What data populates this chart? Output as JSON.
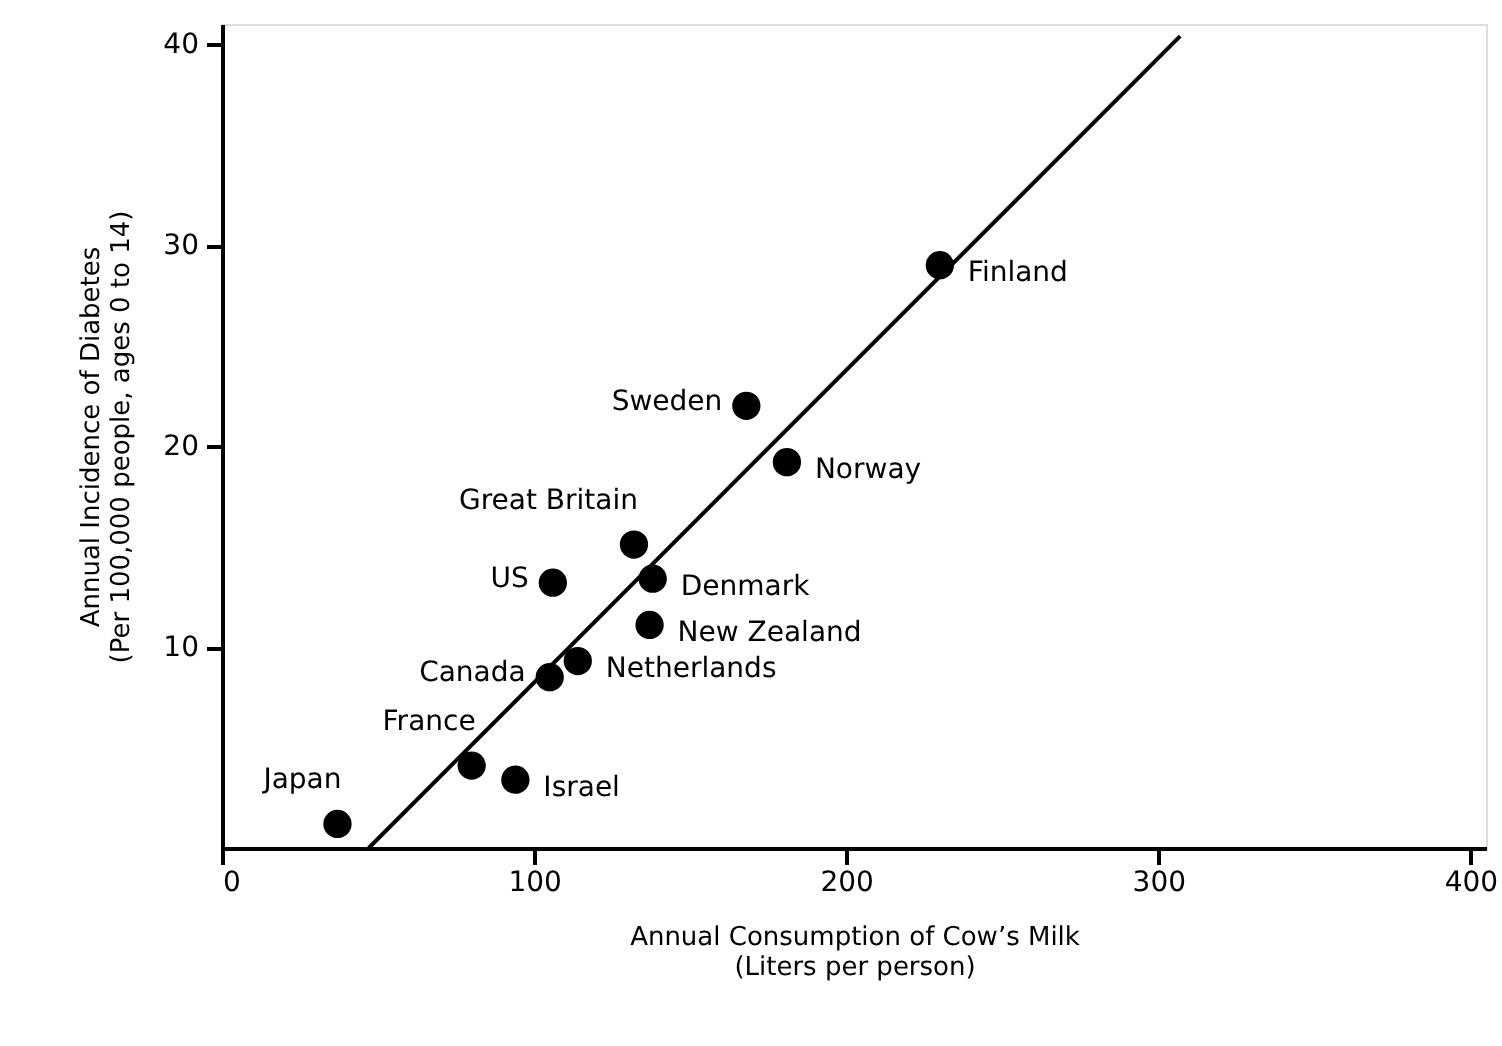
{
  "chart_data": {
    "type": "scatter",
    "xlabel": "Annual Consumption of Cow’s Milk\n(Liters per person)",
    "ylabel": "Annual Incidence of Diabetes\n(Per 100,000 people, ages 0 to 14)",
    "xlim": [
      0,
      405
    ],
    "xticks": [
      0,
      100,
      200,
      300,
      400
    ],
    "ylim": [
      0,
      41
    ],
    "yticks": [
      10,
      20,
      30,
      40
    ],
    "grid": false,
    "series": [
      {
        "marker": "circle",
        "color": "#000000",
        "x": [
          37,
          80,
          94,
          105,
          114,
          106,
          132,
          138,
          137,
          168,
          181,
          230
        ],
        "values": [
          1.2,
          4.1,
          3.4,
          8.5,
          9.3,
          13.2,
          15.1,
          13.4,
          11.1,
          22.0,
          19.2,
          29.0
        ]
      },
      {
        "type": "line",
        "color": "#000000",
        "x": [
          47,
          307
        ],
        "values": [
          0,
          40.4
        ]
      }
    ],
    "annotations": [
      {
        "text": "Japan",
        "x": 37,
        "y": 1.2
      },
      {
        "text": "France",
        "x": 80,
        "y": 4.1
      },
      {
        "text": "Israel",
        "x": 94,
        "y": 3.4
      },
      {
        "text": "Canada",
        "x": 105,
        "y": 8.5
      },
      {
        "text": "Netherlands",
        "x": 114,
        "y": 9.3
      },
      {
        "text": "US",
        "x": 106,
        "y": 13.2
      },
      {
        "text": "Great Britain",
        "x": 132,
        "y": 15.1
      },
      {
        "text": "Denmark",
        "x": 138,
        "y": 13.4
      },
      {
        "text": "New Zealand",
        "x": 137,
        "y": 11.1
      },
      {
        "text": "Sweden",
        "x": 168,
        "y": 22.0
      },
      {
        "text": "Norway",
        "x": 181,
        "y": 19.2
      },
      {
        "text": "Finland",
        "x": 230,
        "y": 29.0
      }
    ]
  }
}
